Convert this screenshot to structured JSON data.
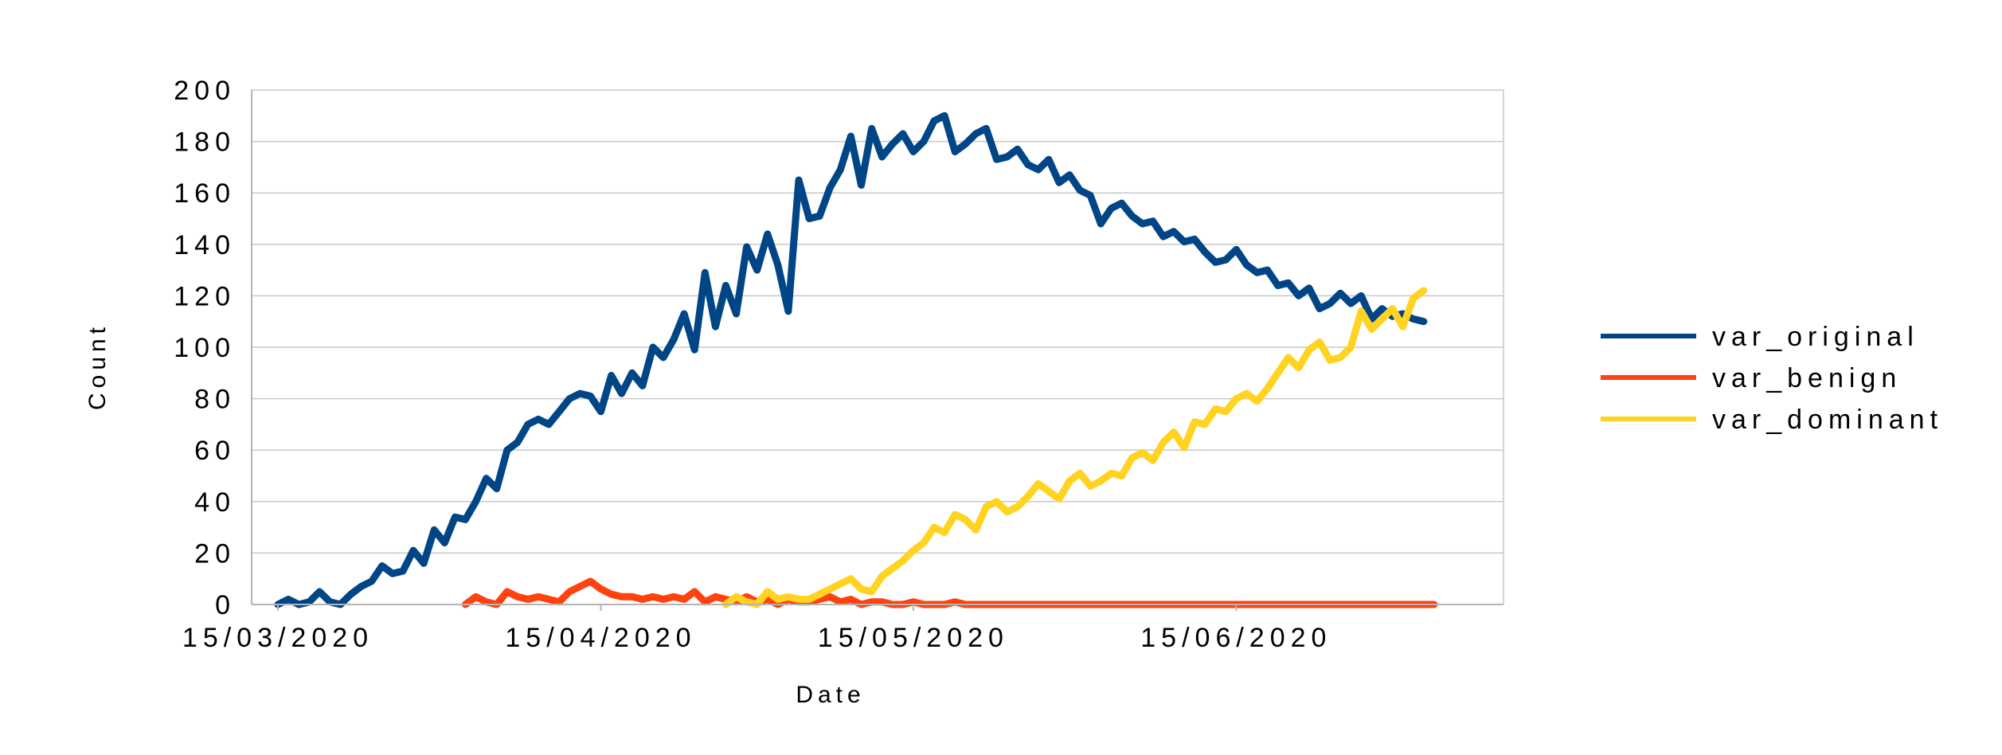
{
  "chart_data": {
    "type": "line",
    "title": "",
    "xlabel": "Date",
    "ylabel": "Count",
    "start_date": "2020-03-15",
    "ylim": [
      0,
      200
    ],
    "yticks": [
      0,
      20,
      40,
      60,
      80,
      100,
      120,
      140,
      160,
      180,
      200
    ],
    "xticks": [
      {
        "label": "15/03/2020",
        "date": "2020-03-15"
      },
      {
        "label": "15/04/2020",
        "date": "2020-04-15"
      },
      {
        "label": "15/05/2020",
        "date": "2020-05-15"
      },
      {
        "label": "15/06/2020",
        "date": "2020-06-15"
      }
    ],
    "grid": {
      "horizontal": true,
      "vertical": false
    },
    "legend_position": "right",
    "series": [
      {
        "name": "var_original",
        "color": "#004586",
        "start_date": "2020-03-15",
        "values": [
          0,
          2,
          0,
          1,
          5,
          1,
          0,
          4,
          7,
          9,
          15,
          12,
          13,
          21,
          16,
          29,
          24,
          34,
          33,
          40,
          49,
          45,
          60,
          63,
          70,
          72,
          70,
          75,
          80,
          82,
          81,
          75,
          89,
          82,
          90,
          85,
          100,
          96,
          103,
          113,
          99,
          129,
          108,
          124,
          113,
          139,
          130,
          144,
          132,
          114,
          165,
          150,
          151,
          162,
          169,
          182,
          163,
          185,
          174,
          179,
          183,
          176,
          180,
          188,
          190,
          176,
          179,
          183,
          185,
          173,
          174,
          177,
          171,
          169,
          173,
          164,
          167,
          161,
          159,
          148,
          154,
          156,
          151,
          148,
          149,
          143,
          145,
          141,
          142,
          137,
          133,
          134,
          138,
          132,
          129,
          130,
          124,
          125,
          120,
          123,
          115,
          117,
          121,
          117,
          120,
          111,
          115,
          112,
          113,
          111,
          110
        ]
      },
      {
        "name": "var_benign",
        "color": "#ff420e",
        "start_date": "2020-04-02",
        "values": [
          0,
          3,
          1,
          0,
          5,
          3,
          2,
          3,
          2,
          1,
          5,
          7,
          9,
          6,
          4,
          3,
          3,
          2,
          3,
          2,
          3,
          2,
          5,
          1,
          3,
          2,
          1,
          3,
          1,
          2,
          0,
          2,
          1,
          1,
          2,
          3,
          1,
          2,
          0,
          1,
          1,
          0,
          0,
          1,
          0,
          0,
          0,
          1,
          0,
          0,
          0,
          0,
          0,
          0,
          0,
          0,
          0,
          0,
          0,
          0,
          0,
          0,
          0,
          0,
          0,
          0,
          0,
          0,
          0,
          0,
          0,
          0,
          0,
          0,
          0,
          0,
          0,
          0,
          0,
          0,
          0,
          0,
          0,
          0,
          0,
          0,
          0,
          0,
          0,
          0,
          0,
          0,
          0,
          0
        ]
      },
      {
        "name": "var_dominant",
        "color": "#ffd320",
        "start_date": "2020-04-27",
        "values": [
          0,
          3,
          1,
          0,
          5,
          2,
          3,
          2,
          2,
          4,
          6,
          8,
          10,
          6,
          5,
          11,
          14,
          17,
          21,
          24,
          30,
          28,
          35,
          33,
          29,
          38,
          40,
          36,
          38,
          42,
          47,
          44,
          41,
          48,
          51,
          46,
          48,
          51,
          50,
          57,
          59,
          56,
          63,
          67,
          61,
          71,
          70,
          76,
          75,
          80,
          82,
          79,
          84,
          90,
          96,
          92,
          99,
          102,
          95,
          96,
          100,
          114,
          107,
          111,
          115,
          108,
          119,
          122
        ]
      }
    ]
  }
}
